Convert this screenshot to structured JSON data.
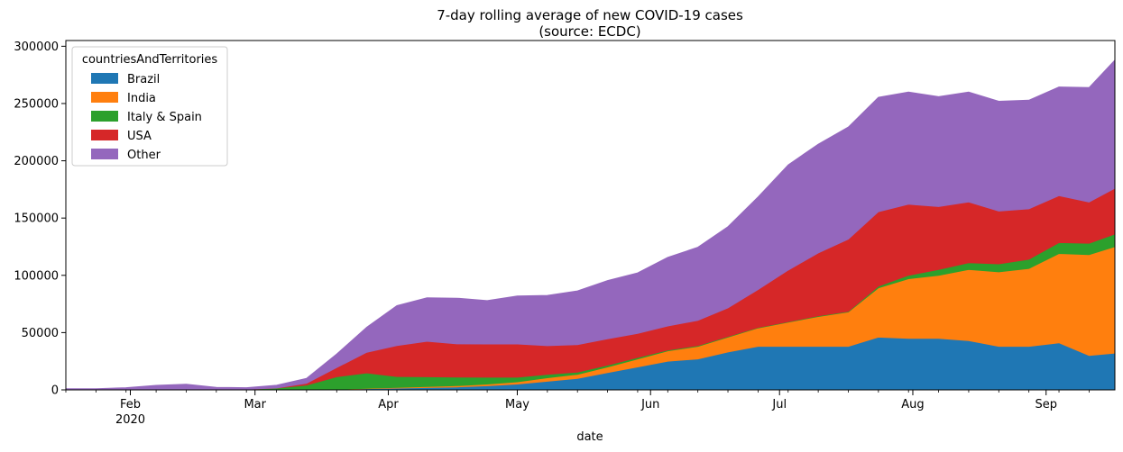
{
  "chart_data": {
    "type": "area",
    "stacked": true,
    "title": "7-day rolling average of new COVID-19 cases",
    "subtitle": "(source: ECDC)",
    "xlabel": "date",
    "ylabel": "",
    "x_start": "2020-01-17",
    "x_end": "2020-09-17",
    "ylim": [
      0,
      305000
    ],
    "yticks": [
      0,
      50000,
      100000,
      150000,
      200000,
      250000,
      300000
    ],
    "xticks": [
      {
        "date": "2020-02-01",
        "label": "Feb",
        "sublabel": "2020"
      },
      {
        "date": "2020-03-01",
        "label": "Mar",
        "sublabel": ""
      },
      {
        "date": "2020-04-01",
        "label": "Apr",
        "sublabel": ""
      },
      {
        "date": "2020-05-01",
        "label": "May",
        "sublabel": ""
      },
      {
        "date": "2020-06-01",
        "label": "Jun",
        "sublabel": ""
      },
      {
        "date": "2020-07-01",
        "label": "Jul",
        "sublabel": ""
      },
      {
        "date": "2020-08-01",
        "label": "Aug",
        "sublabel": ""
      },
      {
        "date": "2020-09-01",
        "label": "Sep",
        "sublabel": ""
      }
    ],
    "grid": false,
    "legend": {
      "title": "countriesAndTerritories",
      "position": "top-left"
    },
    "x": [
      "2020-01-17",
      "2020-01-24",
      "2020-01-31",
      "2020-02-07",
      "2020-02-14",
      "2020-02-21",
      "2020-02-28",
      "2020-03-06",
      "2020-03-13",
      "2020-03-20",
      "2020-03-27",
      "2020-04-03",
      "2020-04-10",
      "2020-04-17",
      "2020-04-24",
      "2020-05-01",
      "2020-05-08",
      "2020-05-15",
      "2020-05-22",
      "2020-05-29",
      "2020-06-05",
      "2020-06-12",
      "2020-06-19",
      "2020-06-26",
      "2020-07-03",
      "2020-07-10",
      "2020-07-17",
      "2020-07-24",
      "2020-07-31",
      "2020-08-07",
      "2020-08-14",
      "2020-08-21",
      "2020-08-28",
      "2020-09-04",
      "2020-09-11",
      "2020-09-17"
    ],
    "series": [
      {
        "name": "Brazil",
        "color": "#1f77b4",
        "values": [
          0,
          0,
          0,
          0,
          0,
          0,
          0,
          0,
          100,
          300,
          1000,
          1500,
          2000,
          2500,
          3500,
          5000,
          7500,
          10000,
          15000,
          20000,
          25000,
          27000,
          33000,
          38000,
          38000,
          38000,
          38000,
          46000,
          45000,
          45000,
          43000,
          38000,
          38000,
          41000,
          30000,
          32000
        ]
      },
      {
        "name": "India",
        "color": "#ff7f0e",
        "values": [
          0,
          0,
          0,
          0,
          0,
          0,
          0,
          0,
          50,
          100,
          300,
          600,
          900,
          1100,
          1500,
          2000,
          3000,
          3500,
          5000,
          7000,
          9000,
          11000,
          13000,
          16000,
          21000,
          26000,
          30000,
          43000,
          52000,
          55000,
          62000,
          65000,
          68000,
          78000,
          88000,
          93000
        ]
      },
      {
        "name": "Italy & Spain",
        "color": "#2ca02c",
        "values": [
          0,
          0,
          0,
          0,
          0,
          200,
          500,
          1500,
          4000,
          11000,
          13500,
          9500,
          8500,
          7500,
          6000,
          4000,
          3000,
          2000,
          1500,
          1200,
          700,
          600,
          500,
          500,
          500,
          500,
          500,
          1500,
          3000,
          5000,
          6000,
          7000,
          8000,
          9500,
          10000,
          11000
        ]
      },
      {
        "name": "USA",
        "color": "#d62728",
        "values": [
          0,
          0,
          0,
          0,
          0,
          0,
          0,
          100,
          1500,
          8000,
          18000,
          27000,
          31000,
          29000,
          29000,
          29000,
          25000,
          24000,
          23000,
          21000,
          21000,
          22000,
          25000,
          33000,
          45000,
          55000,
          63000,
          65000,
          62000,
          55000,
          53000,
          46000,
          44000,
          41000,
          36000,
          40000
        ]
      },
      {
        "name": "Other",
        "color": "#9467bd",
        "values": [
          1000,
          1000,
          2000,
          4000,
          5000,
          2000,
          1500,
          2500,
          4500,
          12000,
          22000,
          35000,
          38000,
          40000,
          38000,
          42000,
          44000,
          47000,
          51000,
          53000,
          60000,
          64000,
          71000,
          81000,
          92000,
          95000,
          98000,
          100000,
          98000,
          96000,
          96000,
          96000,
          95000,
          95000,
          100000,
          112000
        ]
      }
    ]
  }
}
